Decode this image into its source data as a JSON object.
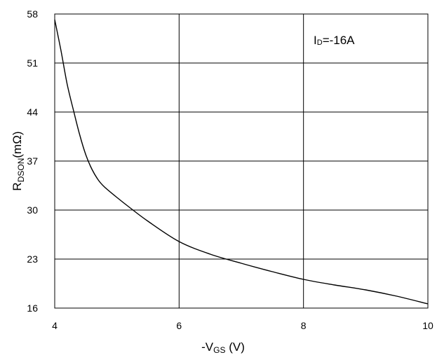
{
  "chart_data": {
    "type": "line",
    "title": "",
    "xlabel": {
      "main": "-V",
      "sub": "GS",
      "tail": " (V)"
    },
    "ylabel": {
      "main": "R",
      "sub": "DSON",
      "tail": "(mΩ)"
    },
    "xlim": [
      4,
      10
    ],
    "ylim": [
      16,
      58
    ],
    "xticks": [
      4,
      6,
      8,
      10
    ],
    "yticks": [
      16,
      23,
      30,
      37,
      44,
      51,
      58
    ],
    "grid": true,
    "annotation": {
      "main": "I",
      "sub": "D",
      "tail": "=-16A"
    },
    "series": [
      {
        "x": [
          4.0,
          4.1,
          4.2,
          4.3,
          4.4,
          4.5,
          4.6,
          4.7,
          4.8,
          5.0,
          5.2,
          5.5,
          6.0,
          6.5,
          7.0,
          7.5,
          8.0,
          8.5,
          9.0,
          9.5,
          10.0
        ],
        "values": [
          57.2,
          52.8,
          48.0,
          44.3,
          40.8,
          37.9,
          35.8,
          34.3,
          33.3,
          31.8,
          30.4,
          28.4,
          25.5,
          23.7,
          22.4,
          21.2,
          20.1,
          19.3,
          18.6,
          17.7,
          16.6
        ]
      }
    ],
    "line_color": "#000000",
    "grid_color": "#000000"
  }
}
